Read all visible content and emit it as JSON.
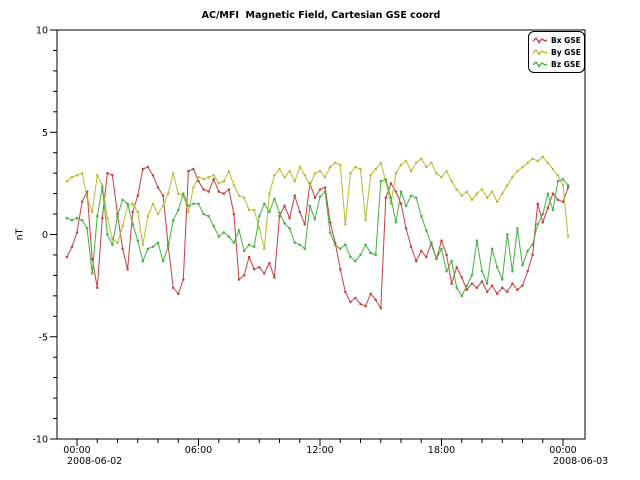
{
  "page": {
    "background_color": "#ffffff",
    "foreground_color": "#000000"
  },
  "chart_data": {
    "type": "line",
    "title": "AC/MFI  Magnetic Field, Cartesian GSE coord",
    "xlabel": "",
    "ylabel": "nT",
    "ylim": [
      -10,
      10
    ],
    "y_major_ticks": [
      10,
      5,
      0,
      -5,
      -10
    ],
    "y_tick_labels": [
      "10",
      "5",
      "0",
      "-5",
      "-10"
    ],
    "y_minor_step": 1,
    "x_range_hours": [
      0,
      24
    ],
    "x_major_tick_hours": [
      0,
      6,
      12,
      18,
      24
    ],
    "x_tick_labels": [
      "00:00",
      "06:00",
      "12:00",
      "18:00",
      "00:00"
    ],
    "x_minor_step_hours": 1,
    "x_date_labels": [
      {
        "tick_index": 0,
        "text": "2008-06-02"
      },
      {
        "tick_index": 4,
        "text": "2008-06-03"
      }
    ],
    "grid": false,
    "legend_position": "top-right",
    "sample_start_hour": -0.5,
    "sample_step_hours": 0.25,
    "series": [
      {
        "name": "Bx GSE",
        "color": "#c2413c",
        "values": [
          -1.1,
          -0.6,
          0.1,
          1.6,
          2.1,
          -1.2,
          -2.6,
          0.8,
          3.0,
          2.9,
          1.0,
          -0.7,
          -1.7,
          1.1,
          1.9,
          3.2,
          3.3,
          2.9,
          2.3,
          1.9,
          -0.5,
          -2.6,
          -2.9,
          -2.2,
          3.1,
          3.2,
          2.6,
          2.2,
          2.1,
          2.7,
          2.1,
          2.0,
          2.2,
          1.0,
          -2.2,
          -2.0,
          -1.1,
          -1.7,
          -1.6,
          -1.9,
          -1.4,
          -2.1,
          0.9,
          1.4,
          0.8,
          1.9,
          1.1,
          0.5,
          2.5,
          1.8,
          2.2,
          2.3,
          0.6,
          -0.4,
          -1.7,
          -2.8,
          -3.3,
          -3.1,
          -3.4,
          -3.5,
          -2.9,
          -3.2,
          -3.6,
          1.8,
          2.5,
          2.1,
          1.5,
          0.3,
          -0.6,
          -1.3,
          -0.8,
          -1.1,
          -0.4,
          -1.2,
          -0.3,
          -1.0,
          -2.4,
          -1.6,
          -2.1,
          -2.7,
          -2.4,
          -2.6,
          -2.3,
          -2.8,
          -2.5,
          -2.9,
          -2.6,
          -2.8,
          -2.4,
          -2.7,
          -2.5,
          -1.8,
          -1.0,
          1.5,
          0.6,
          1.3,
          2.0,
          1.7,
          1.6,
          2.3
        ]
      },
      {
        "name": "By GSE",
        "color": "#b9ba35",
        "values": [
          2.6,
          2.8,
          2.9,
          3.0,
          1.8,
          1.1,
          2.9,
          2.4,
          0.8,
          -0.2,
          -0.4,
          0.4,
          1.4,
          1.5,
          1.1,
          -0.5,
          0.9,
          1.5,
          1.0,
          1.4,
          2.0,
          3.0,
          2.0,
          1.9,
          1.1,
          2.3,
          2.8,
          2.7,
          2.8,
          2.9,
          2.5,
          2.6,
          3.1,
          2.4,
          1.9,
          1.8,
          1.2,
          1.2,
          0.3,
          -0.7,
          2.0,
          2.9,
          3.2,
          2.8,
          3.1,
          2.6,
          3.3,
          2.9,
          2.4,
          3.0,
          3.1,
          2.8,
          3.3,
          3.5,
          3.4,
          0.5,
          3.0,
          3.3,
          3.2,
          0.7,
          2.9,
          3.2,
          3.5,
          2.6,
          1.5,
          3.0,
          3.4,
          3.6,
          3.1,
          3.5,
          3.7,
          3.3,
          3.5,
          3.0,
          2.8,
          3.1,
          2.6,
          2.2,
          1.9,
          2.1,
          1.7,
          2.0,
          2.2,
          1.8,
          2.1,
          1.6,
          2.0,
          2.4,
          2.8,
          3.1,
          3.3,
          3.5,
          3.7,
          3.6,
          3.8,
          3.5,
          3.2,
          2.9,
          2.4,
          -0.1
        ]
      },
      {
        "name": "Bz GSE",
        "color": "#43b13f",
        "values": [
          0.8,
          0.7,
          0.8,
          0.7,
          0.3,
          -1.9,
          0.9,
          2.3,
          0.0,
          -0.5,
          0.9,
          1.7,
          1.5,
          0.5,
          -0.3,
          -1.3,
          -0.7,
          -0.6,
          -0.4,
          -1.3,
          -0.6,
          0.7,
          1.2,
          2.0,
          1.4,
          1.5,
          1.5,
          1.0,
          0.9,
          0.4,
          -0.1,
          0.1,
          -0.1,
          -0.4,
          0.2,
          -0.8,
          -0.5,
          -0.6,
          0.9,
          1.5,
          1.1,
          1.75,
          1.05,
          0.55,
          0.3,
          -0.4,
          -0.5,
          -0.7,
          1.4,
          0.75,
          1.85,
          2.1,
          0.1,
          -0.5,
          -0.7,
          -0.5,
          -1.1,
          -1.3,
          -1.0,
          -0.5,
          -0.9,
          -1.0,
          2.6,
          2.7,
          1.8,
          0.6,
          2.1,
          1.4,
          1.9,
          1.8,
          0.9,
          0.2,
          -0.5,
          -1.2,
          -0.7,
          -1.8,
          -1.3,
          -2.6,
          -3.0,
          -2.5,
          -2.0,
          -0.3,
          -1.8,
          -2.4,
          -0.7,
          -1.6,
          -2.2,
          0.0,
          -1.8,
          0.3,
          -1.5,
          -0.8,
          -0.5,
          0.5,
          1.0,
          2.0,
          1.2,
          2.6,
          2.7,
          2.4
        ]
      }
    ]
  }
}
